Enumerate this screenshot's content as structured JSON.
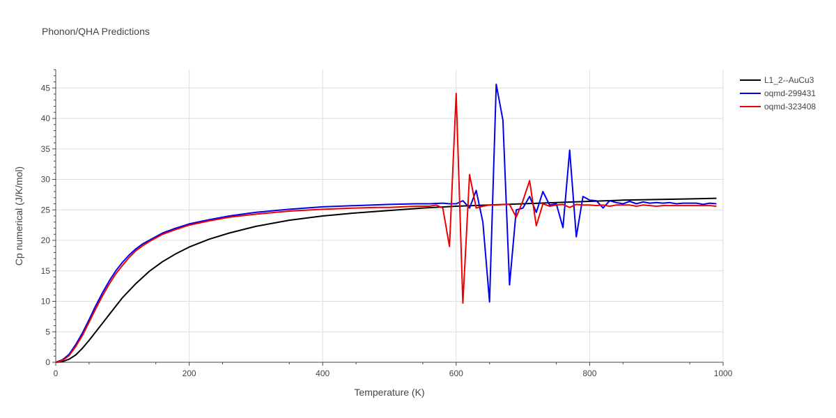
{
  "chart_data": {
    "type": "line",
    "title": "Phonon/QHA Predictions",
    "xlabel": "Temperature (K)",
    "ylabel": "Cp numerical (J/K/mol)",
    "xlim": [
      0,
      1000
    ],
    "ylim": [
      0,
      48
    ],
    "xticks": [
      0,
      200,
      400,
      600,
      800,
      1000
    ],
    "yticks": [
      0,
      5,
      10,
      15,
      20,
      25,
      30,
      35,
      40,
      45
    ],
    "grid": true,
    "legend_position": "top-right",
    "series": [
      {
        "name": "L1_2--AuCu3",
        "color": "#000000",
        "x": [
          0,
          10,
          20,
          30,
          40,
          50,
          60,
          70,
          80,
          90,
          100,
          120,
          140,
          160,
          180,
          200,
          230,
          260,
          300,
          350,
          400,
          420,
          450,
          500,
          550,
          600,
          650,
          700,
          750,
          800,
          850,
          900,
          950,
          990
        ],
        "y": [
          0,
          0.1,
          0.5,
          1.2,
          2.3,
          3.6,
          5.0,
          6.4,
          7.8,
          9.2,
          10.6,
          12.9,
          14.9,
          16.5,
          17.8,
          18.9,
          20.2,
          21.2,
          22.3,
          23.3,
          24.0,
          24.2,
          24.5,
          24.9,
          25.3,
          25.6,
          25.8,
          26.0,
          26.2,
          26.4,
          26.6,
          26.7,
          26.8,
          26.9
        ]
      },
      {
        "name": "oqmd-299431",
        "color": "#0000ee",
        "x": [
          0,
          10,
          20,
          30,
          40,
          50,
          60,
          70,
          80,
          90,
          100,
          110,
          120,
          130,
          140,
          160,
          180,
          200,
          230,
          260,
          300,
          350,
          400,
          450,
          500,
          540,
          560,
          580,
          590,
          600,
          610,
          620,
          630,
          640,
          650,
          660,
          670,
          680,
          690,
          700,
          710,
          720,
          730,
          740,
          750,
          760,
          770,
          780,
          790,
          800,
          810,
          820,
          830,
          840,
          850,
          860,
          870,
          880,
          890,
          900,
          910,
          920,
          930,
          940,
          950,
          960,
          970,
          980,
          990
        ],
        "y": [
          0,
          0.4,
          1.3,
          2.9,
          4.8,
          7.0,
          9.3,
          11.4,
          13.3,
          15.0,
          16.4,
          17.6,
          18.6,
          19.4,
          20.0,
          21.2,
          22.0,
          22.7,
          23.4,
          24.0,
          24.6,
          25.1,
          25.5,
          25.7,
          25.9,
          26.0,
          26.0,
          26.1,
          26.0,
          26.0,
          26.5,
          25.3,
          28.2,
          23.0,
          9.9,
          45.6,
          39.7,
          12.7,
          25.0,
          25.3,
          27.2,
          24.6,
          28.0,
          25.8,
          26.0,
          22.1,
          34.8,
          20.6,
          27.2,
          26.6,
          26.5,
          25.3,
          26.5,
          26.2,
          26.0,
          26.4,
          26.0,
          26.3,
          26.1,
          26.2,
          26.1,
          26.2,
          26.0,
          26.1,
          26.1,
          26.1,
          25.9,
          26.1,
          26.0
        ]
      },
      {
        "name": "oqmd-323408",
        "color": "#ee0000",
        "x": [
          0,
          10,
          20,
          30,
          40,
          50,
          60,
          70,
          80,
          90,
          100,
          110,
          120,
          130,
          140,
          160,
          180,
          200,
          230,
          260,
          300,
          350,
          400,
          450,
          480,
          500,
          540,
          560,
          570,
          580,
          590,
          600,
          610,
          620,
          630,
          640,
          650,
          660,
          670,
          680,
          690,
          700,
          710,
          720,
          730,
          740,
          750,
          760,
          770,
          780,
          790,
          800,
          810,
          820,
          830,
          840,
          850,
          860,
          870,
          880,
          890,
          900,
          910,
          920,
          930,
          940,
          950,
          960,
          970,
          980,
          990
        ],
        "y": [
          0,
          0.3,
          1.1,
          2.6,
          4.4,
          6.6,
          8.8,
          10.9,
          12.8,
          14.5,
          15.9,
          17.2,
          18.3,
          19.1,
          19.8,
          21.0,
          21.8,
          22.5,
          23.2,
          23.8,
          24.3,
          24.8,
          25.1,
          25.3,
          25.4,
          25.4,
          25.6,
          25.6,
          25.8,
          25.3,
          19.0,
          44.1,
          9.7,
          30.8,
          25.3,
          25.6,
          25.8,
          25.8,
          25.9,
          25.9,
          23.8,
          26.5,
          29.8,
          22.4,
          26.0,
          25.6,
          25.8,
          25.9,
          25.4,
          25.9,
          25.8,
          25.8,
          25.7,
          25.8,
          25.6,
          25.8,
          25.8,
          25.8,
          25.6,
          25.8,
          25.7,
          25.6,
          25.7,
          25.7,
          25.7,
          25.7,
          25.7,
          25.7,
          25.7,
          25.7,
          25.6
        ]
      }
    ]
  }
}
